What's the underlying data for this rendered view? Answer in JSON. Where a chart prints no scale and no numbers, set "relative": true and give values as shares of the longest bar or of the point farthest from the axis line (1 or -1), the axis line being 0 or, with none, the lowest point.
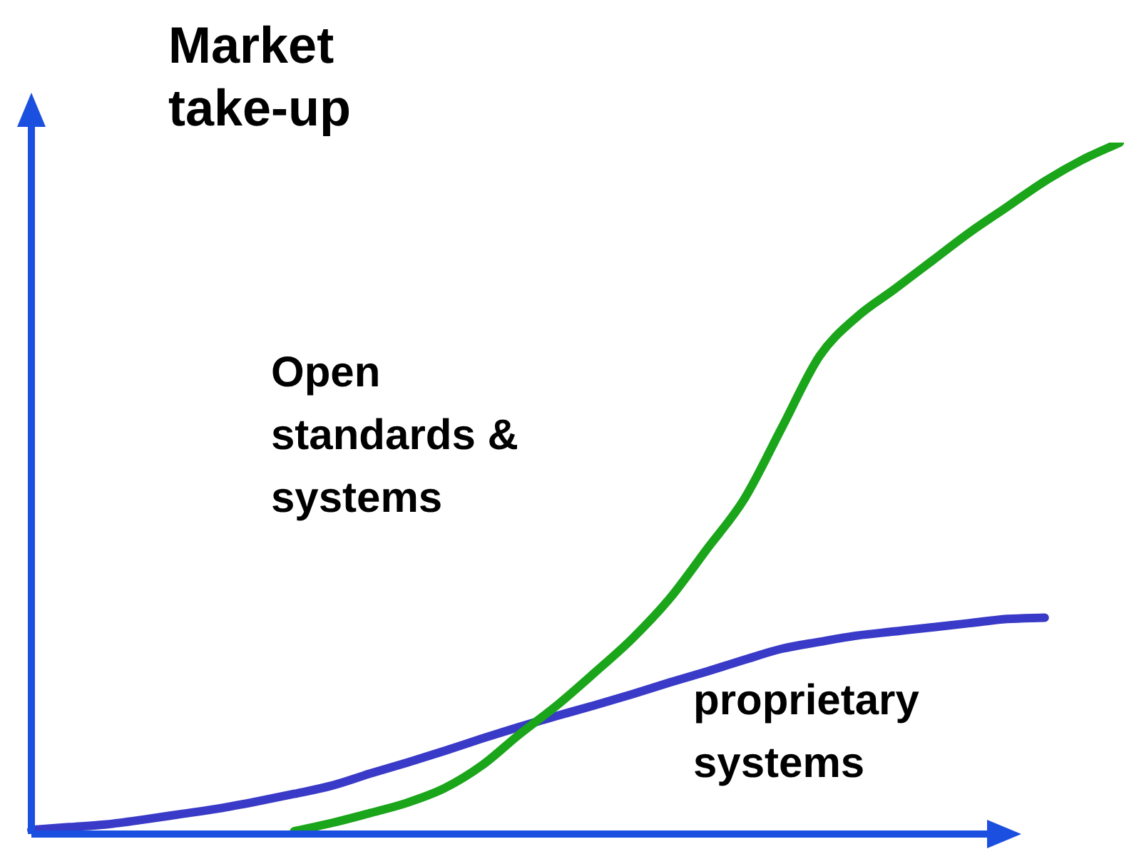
{
  "chart_data": {
    "type": "line",
    "relative": true,
    "ylabel": "Market take-up",
    "categories": [
      null,
      null,
      null,
      null,
      null,
      null,
      null,
      null,
      null,
      null,
      null,
      null,
      null,
      null,
      null,
      null,
      null,
      null,
      null,
      null,
      null,
      null,
      null,
      null,
      null,
      null,
      null,
      null,
      null,
      null
    ],
    "series": [
      {
        "color": "#1aa51a",
        "values": [
          null,
          null,
          null,
          null,
          null,
          null,
          null,
          0.004,
          0.016,
          0.03,
          0.045,
          0.066,
          0.099,
          0.144,
          0.186,
          0.233,
          0.282,
          0.34,
          0.412,
          0.485,
          0.588,
          0.691,
          0.748,
          0.788,
          0.829,
          0.87,
          0.907,
          0.944,
          0.975,
          1
        ]
      },
      {
        "color": "#3a3ac8",
        "values": [
          0.006,
          0.01,
          0.014,
          0.021,
          0.029,
          0.037,
          0.047,
          0.058,
          0.07,
          0.087,
          0.103,
          0.12,
          0.138,
          0.155,
          0.171,
          0.186,
          0.202,
          0.219,
          0.235,
          0.252,
          0.268,
          0.278,
          0.287,
          0.293,
          0.299,
          0.305,
          0.311,
          0.313,
          null,
          null
        ]
      }
    ],
    "annotations": [
      "Open standards & systems",
      "proprietary systems"
    ]
  }
}
